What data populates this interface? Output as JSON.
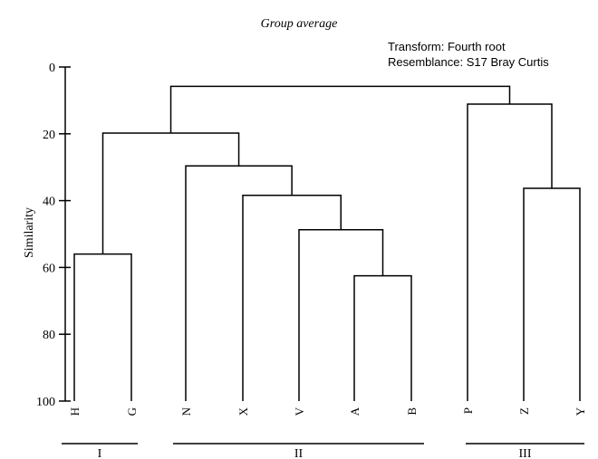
{
  "chart_data": {
    "type": "dendrogram",
    "title": "Group average",
    "notes": [
      "Transform: Fourth root",
      "Resemblance: S17 Bray Curtis"
    ],
    "ylabel": "Similarity",
    "ylim": [
      0,
      100
    ],
    "yticks": [
      0,
      20,
      40,
      60,
      80,
      100
    ],
    "leaves": [
      "H",
      "G",
      "N",
      "X",
      "V",
      "A",
      "B",
      "P",
      "Z",
      "Y"
    ],
    "merges": [
      {
        "left": "A",
        "right": "B",
        "similarity": 62.5
      },
      {
        "left": "V",
        "right": "A-B",
        "similarity": 48.7
      },
      {
        "left": "X",
        "right": "V-A-B",
        "similarity": 38.4
      },
      {
        "left": "N",
        "right": "X-V-A-B",
        "similarity": 29.6
      },
      {
        "left": "H",
        "right": "G",
        "similarity": 56.0
      },
      {
        "left": "H-G",
        "right": "N-X-V-A-B",
        "similarity": 19.8
      },
      {
        "left": "Z",
        "right": "Y",
        "similarity": 36.3
      },
      {
        "left": "P",
        "right": "Z-Y",
        "similarity": 11.1
      },
      {
        "left": "H-G-N-X-V-A-B",
        "right": "P-Z-Y",
        "similarity": 5.8
      }
    ],
    "groups": [
      {
        "label": "I",
        "members": [
          "H",
          "G"
        ]
      },
      {
        "label": "II",
        "members": [
          "N",
          "X",
          "V",
          "A",
          "B"
        ]
      },
      {
        "label": "III",
        "members": [
          "P",
          "Z",
          "Y"
        ]
      }
    ]
  }
}
